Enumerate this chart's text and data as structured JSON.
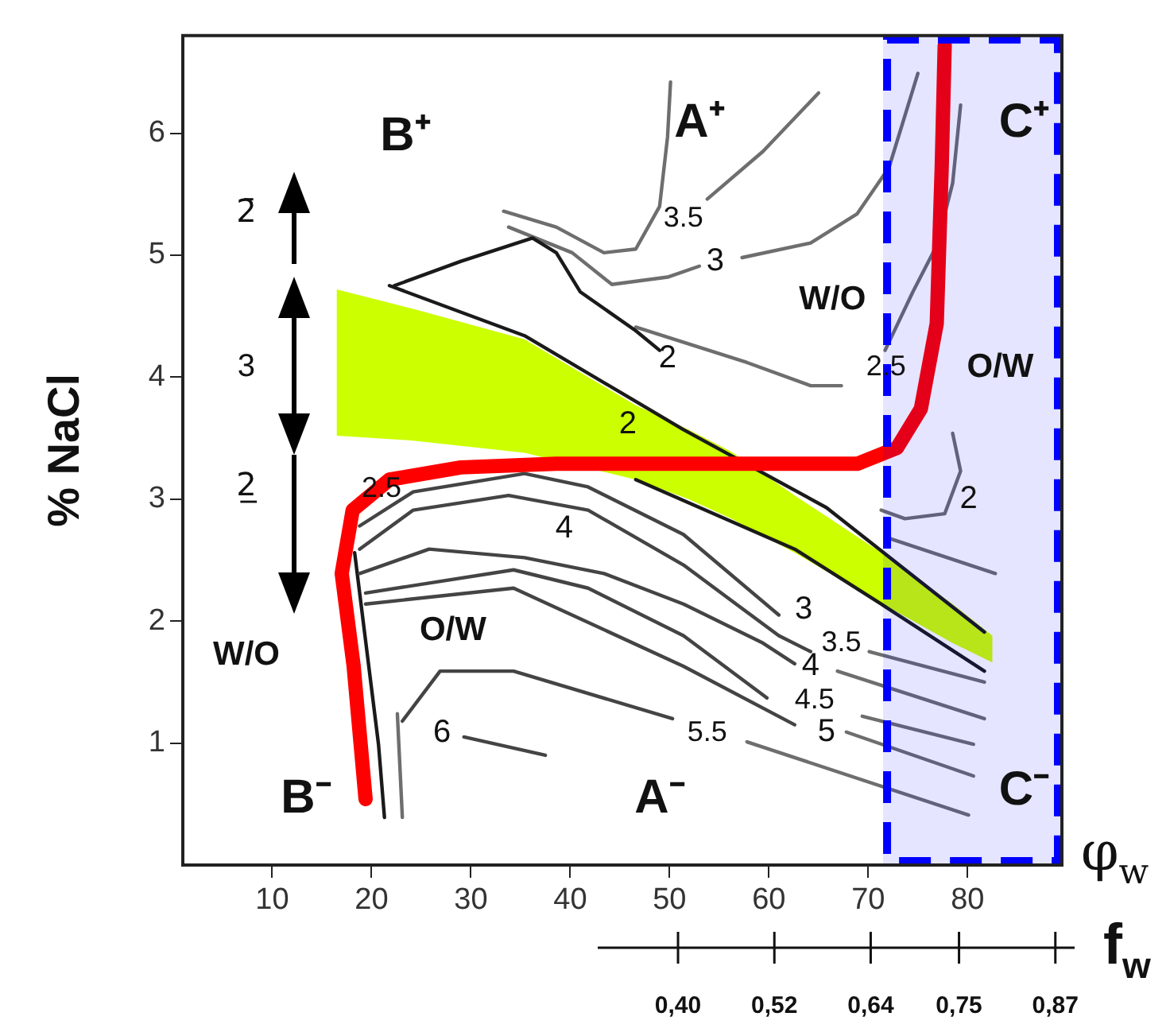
{
  "chart_data": {
    "type": "line",
    "xlabel": "φ$_{w}$",
    "ylabel": "% NaCl",
    "x2label": "f$_{w}$",
    "xlim": [
      1,
      89.5
    ],
    "xticks": [
      10,
      20,
      30,
      40,
      50,
      60,
      70,
      80
    ],
    "ylim": [
      0,
      6.8
    ],
    "yticks": [
      1,
      2,
      3,
      4,
      5,
      6
    ],
    "x2lim": [
      0.3,
      0.894
    ],
    "x2ticks": [
      {
        "value": 0.4,
        "label": "0,40"
      },
      {
        "value": 0.52,
        "label": "0,52"
      },
      {
        "value": 0.64,
        "label": "0,64"
      },
      {
        "value": 0.75,
        "label": "0,75"
      },
      {
        "value": 0.87,
        "label": "0,87"
      }
    ],
    "grid": false,
    "legend": false,
    "marker": "none",
    "bands": [
      {
        "axis": "x",
        "from": 71.5,
        "to": 89.5,
        "color": "#0000ff"
      }
    ],
    "annotations": [
      "B⁺",
      "A⁺",
      "C⁺",
      "B⁻",
      "A⁻",
      "C⁻",
      "2̄",
      "3",
      "2̲",
      "3.5",
      "3",
      "2",
      "2",
      "W/O",
      "2.5",
      "O/W",
      "2",
      "2.5",
      "4",
      "O/W",
      "W/O",
      "6",
      "3",
      "3.5",
      "4",
      "4.5",
      "5",
      "5.5"
    ],
    "series": [
      {
        "type": "area",
        "color": "#ccff00",
        "x": [
          16.5,
          24.2,
          35.4,
          46.6,
          51.9,
          56.2,
          62.6,
          72.1,
          78.5,
          82.5,
          82.5,
          78.5,
          72.1,
          62.6,
          56.2,
          51.9,
          46.6,
          35.4,
          24.2,
          16.5
        ],
        "values": [
          4.72,
          4.56,
          4.31,
          3.77,
          3.57,
          3.39,
          3.03,
          2.52,
          2.14,
          1.88,
          1.66,
          1.82,
          2.11,
          2.56,
          2.84,
          3.0,
          3.16,
          3.38,
          3.48,
          3.52
        ]
      },
      {
        "color": "#1a1a1a",
        "x": [
          21.8,
          35.4,
          51.4,
          65.8,
          81.7
        ],
        "values": [
          4.75,
          4.34,
          3.57,
          2.93,
          1.91
        ]
      },
      {
        "color": "#1a1a1a",
        "x": [
          46.6,
          62.6,
          71.3,
          81.7
        ],
        "values": [
          3.16,
          2.59,
          2.14,
          1.59
        ]
      },
      {
        "color": "#1a1a1a",
        "x": [
          22.3,
          29.0,
          36.2,
          38.6,
          41.0,
          46.6,
          49.0
        ],
        "values": [
          4.75,
          4.95,
          5.14,
          5.02,
          4.7,
          4.38,
          4.22
        ]
      },
      {
        "color": "#6e6e6e",
        "x": [
          33.3,
          38.6,
          43.4,
          46.6,
          49.0,
          49.8,
          50.1
        ],
        "values": [
          5.36,
          5.23,
          5.02,
          5.05,
          5.4,
          5.97,
          6.42
        ]
      },
      {
        "color": "#6e6e6e",
        "x": [
          53.8,
          59.4,
          65.0
        ],
        "values": [
          5.46,
          5.85,
          6.33
        ]
      },
      {
        "color": "#6e6e6e",
        "x": [
          33.8,
          40.2,
          44.2,
          49.8,
          53.0
        ],
        "values": [
          5.23,
          5.02,
          4.76,
          4.82,
          4.91
        ]
      },
      {
        "color": "#6e6e6e",
        "x": [
          57.3,
          64.2,
          68.9,
          72.1,
          75.0
        ],
        "values": [
          4.98,
          5.1,
          5.34,
          5.72,
          6.49
        ]
      },
      {
        "color": "#6e6e6e",
        "x": [
          46.6,
          57.8,
          64.2,
          67.3
        ],
        "values": [
          4.41,
          4.12,
          3.93,
          3.93
        ]
      },
      {
        "color": "#6e6e6e",
        "x": [
          71.7,
          74.5,
          76.9,
          78.5,
          79.3
        ],
        "values": [
          4.22,
          4.7,
          5.08,
          5.59,
          6.23
        ]
      },
      {
        "color": "#6e6e6e",
        "x": [
          78.5,
          79.3,
          77.7,
          73.7,
          71.3
        ],
        "values": [
          3.54,
          3.23,
          2.88,
          2.84,
          2.91
        ]
      },
      {
        "color": "#6e6e6e",
        "x": [
          71.7,
          82.8
        ],
        "values": [
          2.69,
          2.39
        ]
      },
      {
        "color": "#444444",
        "x": [
          18.8,
          24.2,
          35.4,
          41.8,
          51.4,
          61.0
        ],
        "values": [
          2.78,
          3.06,
          3.21,
          3.1,
          2.71,
          2.05
        ]
      },
      {
        "color": "#444444",
        "x": [
          18.8,
          24.2,
          33.8,
          41.8,
          51.4,
          61.0,
          64.2
        ],
        "values": [
          2.59,
          2.91,
          3.03,
          2.91,
          2.46,
          1.88,
          1.75
        ]
      },
      {
        "color": "#444444",
        "x": [
          18.8,
          25.8,
          35.4,
          43.4,
          51.4,
          59.4,
          62.6
        ],
        "values": [
          2.39,
          2.59,
          2.52,
          2.39,
          2.14,
          1.82,
          1.65
        ]
      },
      {
        "color": "#444444",
        "x": [
          19.4,
          34.3,
          41.8,
          51.4,
          59.8
        ],
        "values": [
          2.23,
          2.42,
          2.27,
          1.88,
          1.37
        ]
      },
      {
        "color": "#444444",
        "x": [
          19.4,
          34.3,
          51.4,
          62.6
        ],
        "values": [
          2.14,
          2.27,
          1.63,
          1.15
        ]
      },
      {
        "color": "#444444",
        "x": [
          23.1,
          26.9,
          34.3,
          50.3
        ],
        "values": [
          1.18,
          1.59,
          1.59,
          1.2
        ]
      },
      {
        "color": "#444444",
        "x": [
          29.3,
          37.5
        ],
        "values": [
          1.05,
          0.9
        ]
      },
      {
        "color": "#6e6e6e",
        "x": [
          57.8,
          80.1
        ],
        "values": [
          1.01,
          0.41
        ]
      },
      {
        "color": "#6e6e6e",
        "x": [
          67.8,
          80.6
        ],
        "values": [
          1.09,
          0.73
        ]
      },
      {
        "color": "#6e6e6e",
        "x": [
          69.4,
          80.6
        ],
        "values": [
          1.22,
          0.99
        ]
      },
      {
        "color": "#6e6e6e",
        "x": [
          66.9,
          81.7
        ],
        "values": [
          1.59,
          1.2
        ]
      },
      {
        "color": "#6e6e6e",
        "x": [
          70.1,
          81.7
        ],
        "values": [
          1.75,
          1.5
        ]
      },
      {
        "color": "#1a1a1a",
        "x": [
          18.3,
          19.4,
          20.7,
          21.3
        ],
        "values": [
          2.56,
          1.84,
          0.99,
          0.39
        ]
      },
      {
        "color": "#6e6e6e",
        "x": [
          22.6,
          23.1
        ],
        "values": [
          1.24,
          0.39
        ]
      },
      {
        "color": "#ff0000",
        "x": [
          19.4,
          18.2,
          17.0,
          18.1,
          21.8,
          29.0,
          38.6,
          49.8,
          62.6,
          68.9,
          72.9,
          75.3,
          76.9,
          77.4,
          77.7
        ],
        "values": [
          0.54,
          1.63,
          2.39,
          2.91,
          3.16,
          3.26,
          3.29,
          3.29,
          3.29,
          3.29,
          3.42,
          3.74,
          4.44,
          5.72,
          6.72
        ]
      }
    ]
  }
}
